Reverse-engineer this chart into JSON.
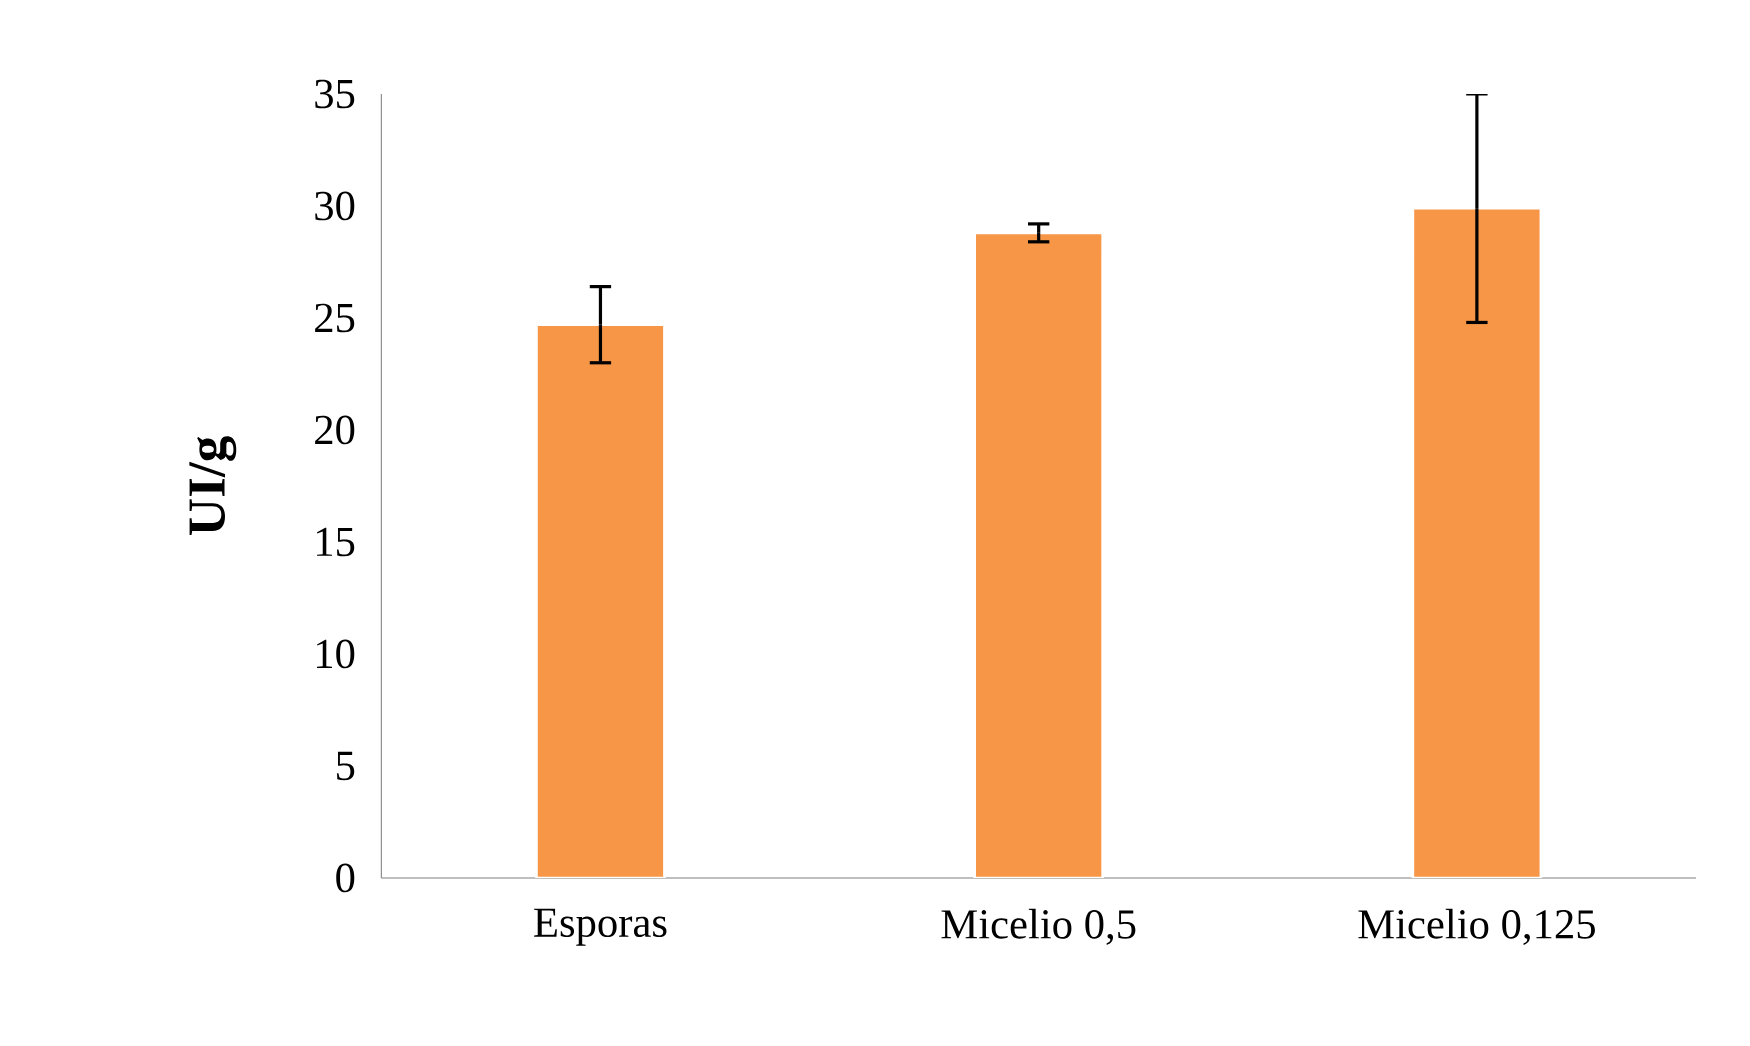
{
  "chart_data": {
    "type": "bar",
    "ylabel": "UI/g",
    "categories": [
      "Esporas",
      "Micelio 0,5",
      "Micelio 0,125"
    ],
    "values": [
      24.7,
      28.8,
      29.9
    ],
    "errors": [
      1.7,
      0.4,
      5.1
    ],
    "color": "#f79646",
    "ylim": [
      0,
      35
    ],
    "yticks": [
      0,
      5,
      10,
      15,
      20,
      25,
      30,
      35
    ],
    "grid": false
  }
}
